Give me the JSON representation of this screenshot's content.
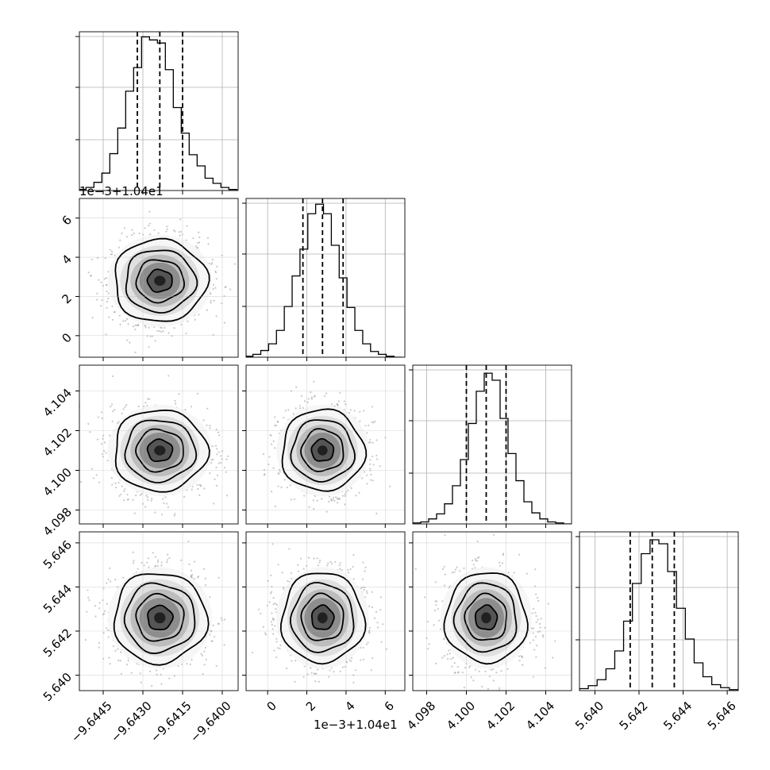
{
  "chart_data": {
    "type": "corner",
    "grid": true,
    "quantiles": [
      0.16,
      0.5,
      0.84
    ],
    "parameters": [
      {
        "range": [
          -9.6454,
          -9.6394
        ],
        "ticks": [
          -9.6445,
          -9.643,
          -9.6415,
          -9.64
        ],
        "tick_labels": [
          "−9.6445",
          "−9.6430",
          "−9.6415",
          "−9.6400"
        ],
        "offset_label": "",
        "quantile_values": [
          -9.64321,
          -9.64236,
          -9.6415
        ],
        "hist_x": [
          -9.6453,
          -9.645,
          -9.6447,
          -9.6444,
          -9.6441,
          -9.6438,
          -9.6435,
          -9.6432,
          -9.6429,
          -9.6426,
          -9.6423,
          -9.642,
          -9.6417,
          -9.6414,
          -9.6411,
          -9.6408,
          -9.6405,
          -9.6402,
          -9.6399,
          -9.6396
        ],
        "hist_counts": [
          1,
          3,
          8,
          17,
          36,
          61,
          97,
          120,
          150,
          147,
          144,
          118,
          81,
          56,
          35,
          24,
          12,
          7,
          3,
          1
        ],
        "hist_range": [
          0,
          155
        ]
      },
      {
        "range": [
          -1.1,
          7.0
        ],
        "ticks": [
          0,
          2,
          4,
          6
        ],
        "tick_labels": [
          "0",
          "2",
          "4",
          "6"
        ],
        "offset_label": "1e−3+1.04e1",
        "quantile_values": [
          1.8,
          2.8,
          3.85
        ],
        "hist_x": [
          -0.95,
          -0.55,
          -0.15,
          0.25,
          0.65,
          1.05,
          1.45,
          1.85,
          2.25,
          2.65,
          3.05,
          3.45,
          3.85,
          4.25,
          4.65,
          5.05,
          5.45,
          5.85,
          6.25,
          6.65
        ],
        "hist_counts": [
          1,
          3,
          7,
          14,
          28,
          53,
          85,
          113,
          150,
          160,
          150,
          117,
          83,
          52,
          28,
          14,
          6,
          3,
          1,
          0
        ],
        "hist_range": [
          0,
          166
        ]
      },
      {
        "range": [
          4.0973,
          4.1053
        ],
        "ticks": [
          4.098,
          4.1,
          4.102,
          4.104
        ],
        "tick_labels": [
          "4.098",
          "4.100",
          "4.102",
          "4.104"
        ],
        "offset_label": "",
        "quantile_values": [
          4.1,
          4.101,
          4.102
        ],
        "hist_x": [
          4.0975,
          4.0979,
          4.0983,
          4.0987,
          4.0991,
          4.0995,
          4.0999,
          4.1003,
          4.1007,
          4.1011,
          4.1015,
          4.1019,
          4.1023,
          4.1027,
          4.1031,
          4.1035,
          4.1039,
          4.1043,
          4.1047,
          4.1051
        ],
        "hist_counts": [
          1,
          2,
          5,
          10,
          20,
          38,
          64,
          100,
          132,
          150,
          143,
          105,
          70,
          43,
          22,
          11,
          5,
          2,
          1,
          0
        ],
        "hist_range": [
          0,
          158
        ]
      },
      {
        "range": [
          5.6393,
          5.6465
        ],
        "ticks": [
          5.64,
          5.642,
          5.644,
          5.646
        ],
        "tick_labels": [
          "5.640",
          "5.642",
          "5.644",
          "5.646"
        ],
        "offset_label": "",
        "quantile_values": [
          5.6416,
          5.6426,
          5.6436
        ],
        "hist_x": [
          5.6395,
          5.6399,
          5.6403,
          5.6407,
          5.6411,
          5.6415,
          5.6419,
          5.6423,
          5.6427,
          5.6431,
          5.6435,
          5.6439,
          5.6443,
          5.6447,
          5.6451,
          5.6455,
          5.6459,
          5.6463
        ],
        "hist_counts": [
          2,
          5,
          11,
          22,
          40,
          70,
          108,
          138,
          152,
          148,
          120,
          83,
          52,
          28,
          14,
          6,
          3,
          1
        ],
        "hist_range": [
          0,
          160
        ]
      }
    ]
  }
}
